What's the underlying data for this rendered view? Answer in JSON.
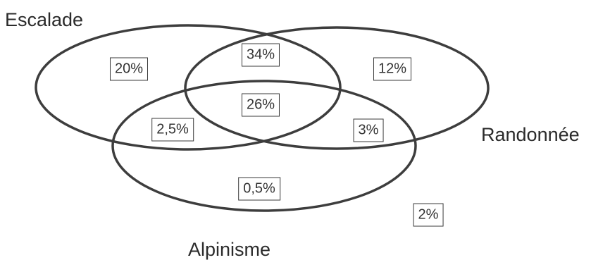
{
  "sets": {
    "escalade": "Escalade",
    "randonnee": "Randonnée",
    "alpinisme": "Alpinisme"
  },
  "regions": {
    "escalade_only": "20%",
    "escalade_randonnee": "34%",
    "randonnee_only": "12%",
    "all_three": "26%",
    "escalade_alpinisme": "2,5%",
    "randonnee_alpinisme": "3%",
    "alpinisme_only": "0,5%",
    "none": "2%"
  },
  "colors": {
    "outline": "#3d3d3d",
    "text": "#2b2b2b"
  }
}
